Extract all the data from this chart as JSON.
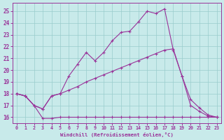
{
  "xlabel": "Windchill (Refroidissement éolien,°C)",
  "background_color": "#c8eaea",
  "grid_color": "#99cccc",
  "line_color": "#993399",
  "xlim": [
    -0.5,
    23.5
  ],
  "ylim": [
    15.5,
    25.7
  ],
  "yticks": [
    16,
    17,
    18,
    19,
    20,
    21,
    22,
    23,
    24,
    25
  ],
  "xticks": [
    0,
    1,
    2,
    3,
    4,
    5,
    6,
    7,
    8,
    9,
    10,
    11,
    12,
    13,
    14,
    15,
    16,
    17,
    18,
    19,
    20,
    21,
    22,
    23
  ],
  "series": [
    {
      "x": [
        0,
        1,
        2,
        3,
        4,
        5,
        6,
        7,
        8,
        9,
        10,
        11,
        12,
        13,
        14,
        15,
        16,
        17,
        18,
        19,
        20,
        21,
        22,
        23
      ],
      "y": [
        18.0,
        17.8,
        17.0,
        15.9,
        15.9,
        16.0,
        16.0,
        16.0,
        16.0,
        16.0,
        16.0,
        16.0,
        16.0,
        16.0,
        16.0,
        16.0,
        16.0,
        16.0,
        16.0,
        16.0,
        16.0,
        16.0,
        16.0,
        16.0
      ]
    },
    {
      "x": [
        0,
        1,
        2,
        3,
        4,
        5,
        6,
        7,
        8,
        9,
        10,
        11,
        12,
        13,
        14,
        15,
        16,
        17,
        18,
        19,
        20,
        21,
        22,
        23
      ],
      "y": [
        18.0,
        17.8,
        17.0,
        16.7,
        17.8,
        18.0,
        18.3,
        18.6,
        19.0,
        19.3,
        19.6,
        19.9,
        20.2,
        20.5,
        20.8,
        21.1,
        21.4,
        21.7,
        21.8,
        19.5,
        17.5,
        16.8,
        16.2,
        16.0
      ]
    },
    {
      "x": [
        0,
        1,
        2,
        3,
        4,
        5,
        6,
        7,
        8,
        9,
        10,
        11,
        12,
        13,
        14,
        15,
        16,
        17,
        18,
        19,
        20,
        21,
        22,
        23
      ],
      "y": [
        18.0,
        17.8,
        17.0,
        16.7,
        17.8,
        18.0,
        19.5,
        20.5,
        21.5,
        20.8,
        21.5,
        22.5,
        23.2,
        23.3,
        24.1,
        25.0,
        24.8,
        25.2,
        21.7,
        19.5,
        17.0,
        16.5,
        16.1,
        16.0
      ]
    }
  ]
}
